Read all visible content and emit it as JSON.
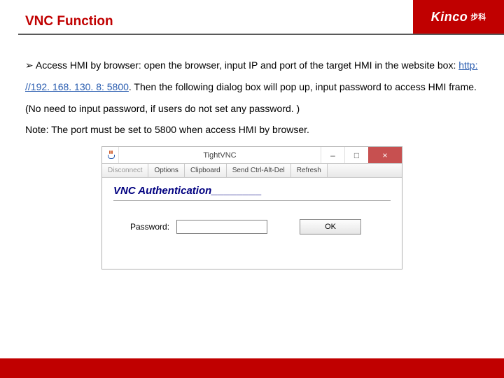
{
  "colors": {
    "brand_red": "#c00000",
    "link_blue": "#2a5db0",
    "auth_navy": "#000080",
    "win_close_red": "#c75050",
    "rule_gray": "#5a5a5a"
  },
  "header": {
    "title": "VNC Function",
    "logo_text": "Kinco",
    "logo_cn": "步科"
  },
  "paragraph": {
    "bullet": "➢",
    "pre_link": " Access HMI by browser: open the browser, input IP and port of the target HMI in the website box: ",
    "link_text": "http: //192. 168. 130. 8: 5800",
    "post_link": ". Then the following dialog box will pop up, input password to access HMI frame. (No need to input password, if users do not set any password. )",
    "note": "Note: The port must be set to 5800 when access HMI by browser."
  },
  "dialog": {
    "window_title": "TightVNC",
    "toolbar": [
      "Disconnect",
      "Options",
      "Clipboard",
      "Send Ctrl-Alt-Del",
      "Refresh"
    ],
    "auth_heading": "VNC Authentication",
    "auth_trail": "________",
    "password_label": "Password:",
    "password_value": "",
    "ok_label": "OK",
    "win_min": "–",
    "win_max": "□",
    "win_close": "×"
  }
}
